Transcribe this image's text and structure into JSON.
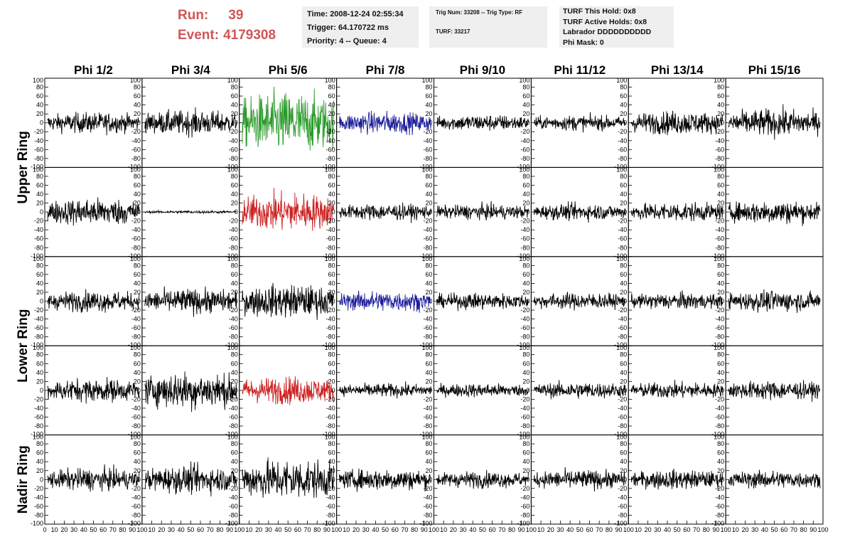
{
  "header": {
    "run_label": "Run:",
    "run_value": "39",
    "event_label": "Event:",
    "event_value": "4179308",
    "info_panel": {
      "time": "Time: 2008-12-24 02:55:34",
      "trigger": "Trigger: 64.170722 ms",
      "priority": "Priority: 4 -- Queue: 4"
    },
    "trig_panel": {
      "line1": "Trig Num: 33208 -- Trig Type: RF",
      "line2": "TURF: 33217"
    },
    "turf_panel": {
      "line1": "TURF This Hold: 0x8",
      "line2": "TURF Active Holds: 0x8",
      "line3": "Labrador DDDDDDDDDD",
      "line4": "Phi Mask: 0"
    }
  },
  "colors": {
    "default": "#000000",
    "green": "#2a9a2a",
    "blue": "#1c1c9a",
    "red": "#cc2222",
    "run_text": "#d05656",
    "panel_bg": "#efefef"
  },
  "chart_data": {
    "type": "line",
    "columns": [
      "Phi 1/2",
      "Phi 3/4",
      "Phi 5/6",
      "Phi 7/8",
      "Phi 9/10",
      "Phi 11/12",
      "Phi 13/14",
      "Phi 15/16"
    ],
    "row_groups": [
      "Upper Ring",
      "Lower Ring",
      "Nadir Ring"
    ],
    "ylim": [
      -100,
      100
    ],
    "xlim": [
      0,
      100
    ],
    "yticks": [
      "-100",
      "-80",
      "-60",
      "-40",
      "-20",
      "0",
      "20",
      "40",
      "60",
      "80",
      "100"
    ],
    "xticks": [
      "0",
      "10",
      "20",
      "30",
      "40",
      "50",
      "60",
      "70",
      "80",
      "90",
      "100"
    ],
    "grid": false,
    "rows": [
      {
        "group": "Upper Ring",
        "panels": [
          {
            "color": "default",
            "amplitude": 15
          },
          {
            "color": "default",
            "amplitude": 18
          },
          {
            "color": "green",
            "amplitude": 45
          },
          {
            "color": "blue",
            "amplitude": 16
          },
          {
            "color": "default",
            "amplitude": 12
          },
          {
            "color": "default",
            "amplitude": 11
          },
          {
            "color": "default",
            "amplitude": 17
          },
          {
            "color": "default",
            "amplitude": 20
          }
        ]
      },
      {
        "group": "Upper Ring",
        "panels": [
          {
            "color": "default",
            "amplitude": 20
          },
          {
            "color": "default",
            "amplitude": 2
          },
          {
            "color": "red",
            "amplitude": 28
          },
          {
            "color": "default",
            "amplitude": 12
          },
          {
            "color": "default",
            "amplitude": 11
          },
          {
            "color": "default",
            "amplitude": 12
          },
          {
            "color": "default",
            "amplitude": 14
          },
          {
            "color": "default",
            "amplitude": 17
          }
        ]
      },
      {
        "group": "Lower Ring",
        "panels": [
          {
            "color": "default",
            "amplitude": 15
          },
          {
            "color": "default",
            "amplitude": 18
          },
          {
            "color": "default",
            "amplitude": 24
          },
          {
            "color": "blue",
            "amplitude": 15
          },
          {
            "color": "default",
            "amplitude": 12
          },
          {
            "color": "default",
            "amplitude": 12
          },
          {
            "color": "default",
            "amplitude": 12
          },
          {
            "color": "default",
            "amplitude": 15
          }
        ]
      },
      {
        "group": "Lower Ring",
        "panels": [
          {
            "color": "default",
            "amplitude": 17
          },
          {
            "color": "default",
            "amplitude": 27
          },
          {
            "color": "red",
            "amplitude": 20
          },
          {
            "color": "default",
            "amplitude": 10
          },
          {
            "color": "default",
            "amplitude": 10
          },
          {
            "color": "default",
            "amplitude": 12
          },
          {
            "color": "default",
            "amplitude": 12
          },
          {
            "color": "default",
            "amplitude": 14
          }
        ]
      },
      {
        "group": "Nadir Ring",
        "panels": [
          {
            "color": "default",
            "amplitude": 16
          },
          {
            "color": "default",
            "amplitude": 20
          },
          {
            "color": "default",
            "amplitude": 30
          },
          {
            "color": "default",
            "amplitude": 16
          },
          {
            "color": "default",
            "amplitude": 12
          },
          {
            "color": "default",
            "amplitude": 14
          },
          {
            "color": "default",
            "amplitude": 14
          },
          {
            "color": "default",
            "amplitude": 13
          }
        ]
      }
    ]
  }
}
